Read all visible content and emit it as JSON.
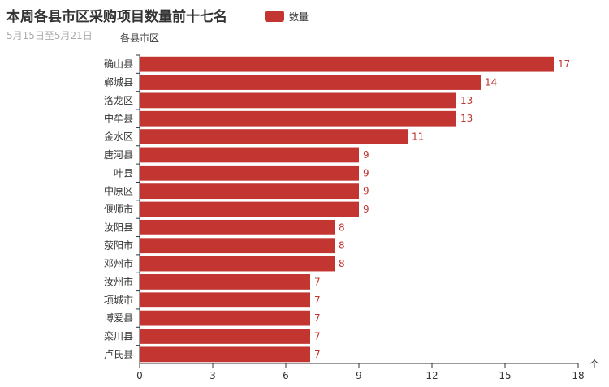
{
  "chart_data": {
    "type": "bar",
    "orientation": "horizontal",
    "title": "本周各县市区采购项目数量前十七名",
    "subtitle": "5月15日至5月21日",
    "ylabel": "各县市区",
    "xlabel": "个",
    "legend": [
      "数量"
    ],
    "legend_position": "top-center",
    "color": "#c23531",
    "categories": [
      "确山县",
      "郸城县",
      "洛龙区",
      "中牟县",
      "金水区",
      "唐河县",
      "叶县",
      "中原区",
      "偃师市",
      "汝阳县",
      "荥阳市",
      "邓州市",
      "汝州市",
      "项城市",
      "博爱县",
      "栾川县",
      "卢氏县"
    ],
    "series": [
      {
        "name": "数量",
        "values": [
          17,
          14,
          13,
          13,
          11,
          9,
          9,
          9,
          9,
          8,
          8,
          8,
          7,
          7,
          7,
          7,
          7
        ]
      }
    ],
    "xlim": [
      0,
      18
    ],
    "xticks": [
      0,
      3,
      6,
      9,
      12,
      15,
      18
    ],
    "grid": false
  }
}
